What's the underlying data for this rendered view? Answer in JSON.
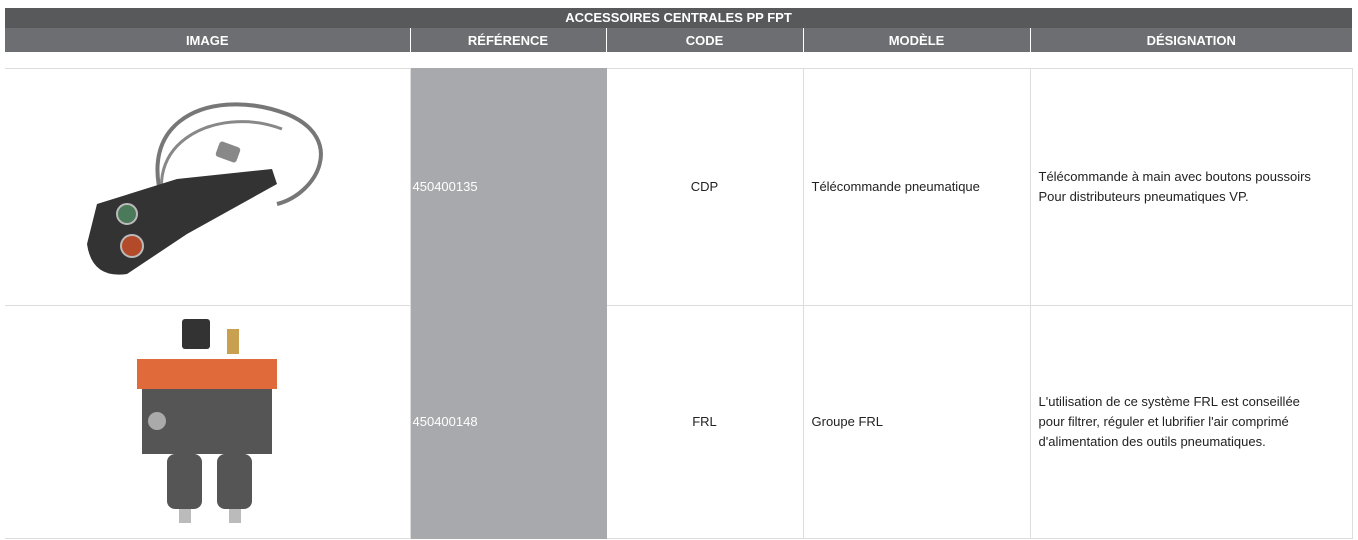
{
  "header": {
    "title": "ACCESSOIRES CENTRALES PP FPT"
  },
  "table": {
    "columns": [
      "IMAGE",
      "RÉFÉRENCE",
      "CODE",
      "MODÈLE",
      "DÉSIGNATION"
    ],
    "rows": [
      {
        "reference": "450400135",
        "code": "CDP",
        "model": "Télécommande pneumatique",
        "designation": [
          "Télécommande à main avec boutons poussoirs",
          "Pour distributeurs pneumatiques VP."
        ]
      },
      {
        "reference": "450400148",
        "code": "FRL",
        "model": "Groupe FRL",
        "designation": [
          "L'utilisation de ce système FRL est conseillée",
          "pour filtrer, réguler et lubrifier l'air comprimé",
          "d'alimentation des outils pneumatiques."
        ]
      }
    ]
  }
}
